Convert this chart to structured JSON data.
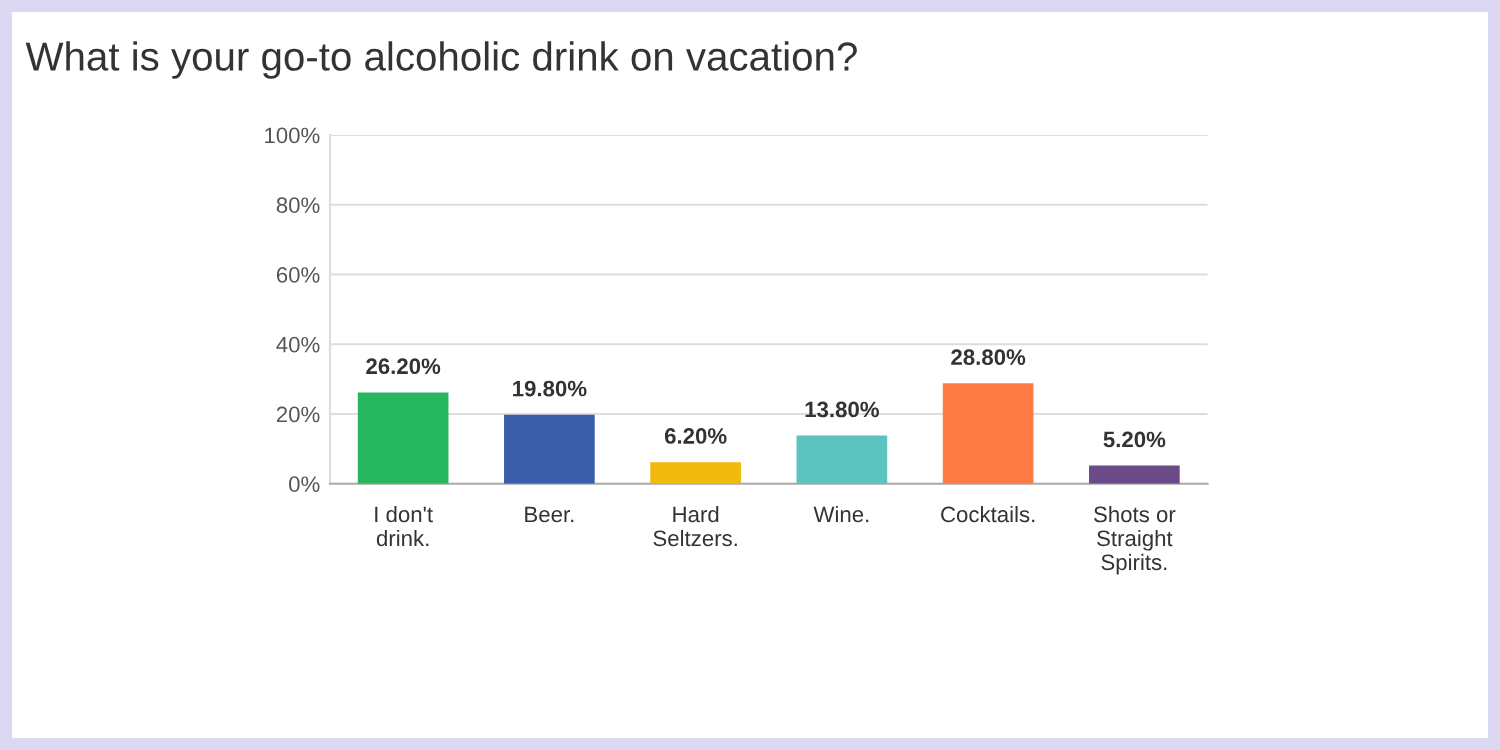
{
  "chart_data": {
    "type": "bar",
    "title": "What is your go-to alcoholic drink on vacation?",
    "categories": [
      "I don't\ndrink.",
      "Beer.",
      "Hard\nSeltzers.",
      "Wine.",
      "Cocktails.",
      "Shots or\nStraight\nSpirits."
    ],
    "values": [
      26.2,
      19.8,
      6.2,
      13.8,
      28.8,
      5.2
    ],
    "colors": [
      "#25b65e",
      "#3a5ea9",
      "#f2b90f",
      "#5cc3c1",
      "#fd7c45",
      "#6a4b88"
    ],
    "value_labels": [
      "26.20%",
      "19.80%",
      "6.20%",
      "13.80%",
      "28.80%",
      "5.20%"
    ],
    "ylim": [
      0,
      100
    ],
    "yticks": [
      {
        "value": 0,
        "label": "0%"
      },
      {
        "value": 20,
        "label": "20%"
      },
      {
        "value": 40,
        "label": "40%"
      },
      {
        "value": 60,
        "label": "60%"
      },
      {
        "value": 80,
        "label": "80%"
      },
      {
        "value": 100,
        "label": "100%"
      }
    ],
    "grid": "y"
  }
}
